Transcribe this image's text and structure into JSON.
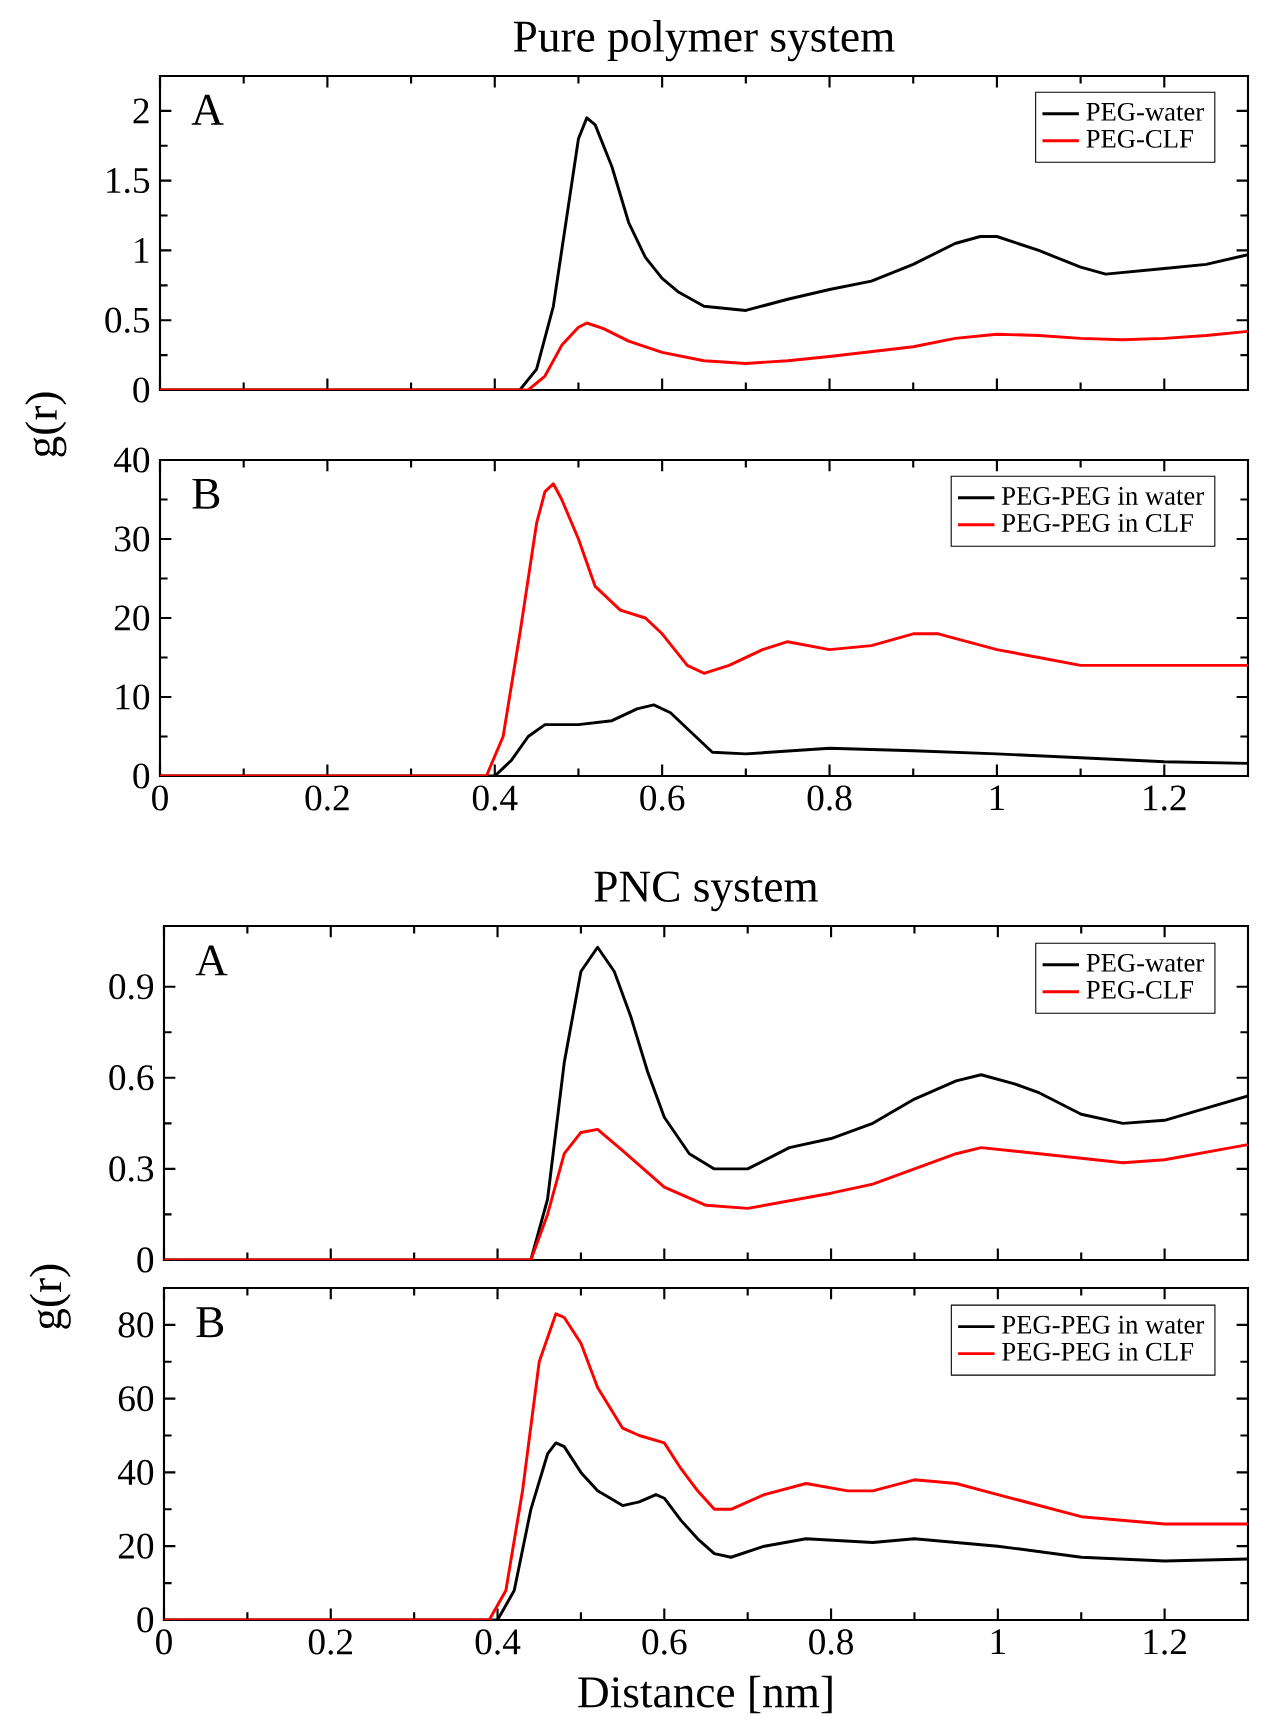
{
  "chart_data": [
    {
      "type": "line",
      "title": "Pure polymer system",
      "ylabel": "g(r)",
      "annotations": [
        "A"
      ],
      "xlim": [
        0,
        1.3
      ],
      "ylim": [
        0,
        2.25
      ],
      "xticks": [
        0,
        0.2,
        0.4,
        0.6,
        0.8,
        1,
        1.2
      ],
      "yticks": [
        0,
        0.5,
        1,
        1.5,
        2
      ],
      "tick_labels": "y",
      "legend": "top right",
      "series": [
        {
          "name": "PEG-water",
          "color": "#000000",
          "x": [
            0,
            0.43,
            0.45,
            0.47,
            0.49,
            0.5,
            0.51,
            0.52,
            0.54,
            0.56,
            0.58,
            0.6,
            0.62,
            0.65,
            0.7,
            0.75,
            0.8,
            0.85,
            0.9,
            0.95,
            0.98,
            1.0,
            1.05,
            1.1,
            1.13,
            1.2,
            1.25,
            1.3
          ],
          "values": [
            0,
            0,
            0.15,
            0.6,
            1.4,
            1.8,
            1.95,
            1.9,
            1.6,
            1.2,
            0.95,
            0.8,
            0.7,
            0.6,
            0.57,
            0.65,
            0.72,
            0.78,
            0.9,
            1.05,
            1.1,
            1.1,
            1.0,
            0.88,
            0.83,
            0.87,
            0.9,
            0.97
          ]
        },
        {
          "name": "PEG-CLF",
          "color": "#ff0000",
          "x": [
            0,
            0.44,
            0.46,
            0.48,
            0.5,
            0.51,
            0.53,
            0.56,
            0.6,
            0.65,
            0.7,
            0.75,
            0.8,
            0.9,
            0.95,
            1.0,
            1.05,
            1.1,
            1.15,
            1.2,
            1.25,
            1.3
          ],
          "values": [
            0,
            0,
            0.1,
            0.32,
            0.45,
            0.48,
            0.44,
            0.35,
            0.27,
            0.21,
            0.19,
            0.21,
            0.24,
            0.31,
            0.37,
            0.4,
            0.39,
            0.37,
            0.36,
            0.37,
            0.39,
            0.42
          ]
        }
      ]
    },
    {
      "type": "line",
      "annotations": [
        "B"
      ],
      "xlim": [
        0,
        1.3
      ],
      "ylim": [
        0,
        40
      ],
      "xticks": [
        0,
        0.2,
        0.4,
        0.6,
        0.8,
        1,
        1.2
      ],
      "yticks": [
        0,
        10,
        20,
        30,
        40
      ],
      "legend": "top right",
      "series": [
        {
          "name": "PEG-PEG in water",
          "color": "#000000",
          "x": [
            0,
            0.4,
            0.42,
            0.44,
            0.46,
            0.5,
            0.54,
            0.57,
            0.59,
            0.61,
            0.64,
            0.66,
            0.7,
            0.8,
            0.9,
            1.0,
            1.1,
            1.2,
            1.3
          ],
          "values": [
            0,
            0,
            2,
            5,
            6.5,
            6.5,
            7,
            8.5,
            9,
            8,
            5,
            3,
            2.8,
            3.5,
            3.2,
            2.8,
            2.3,
            1.8,
            1.6
          ]
        },
        {
          "name": "PEG-PEG in CLF",
          "color": "#ff0000",
          "x": [
            0,
            0.39,
            0.41,
            0.43,
            0.45,
            0.46,
            0.47,
            0.48,
            0.5,
            0.52,
            0.55,
            0.58,
            0.6,
            0.63,
            0.65,
            0.68,
            0.72,
            0.75,
            0.8,
            0.85,
            0.9,
            0.93,
            1.0,
            1.05,
            1.1,
            1.2,
            1.3
          ],
          "values": [
            0,
            0,
            5,
            18,
            32,
            36,
            37,
            35,
            30,
            24,
            21,
            20,
            18,
            14,
            13,
            14,
            16,
            17,
            16,
            16.5,
            18,
            18,
            16,
            15,
            14,
            14,
            14
          ]
        }
      ]
    },
    {
      "type": "line",
      "title": "PNC system",
      "ylabel": "g(r)",
      "annotations": [
        "A"
      ],
      "xlim": [
        0,
        1.3
      ],
      "ylim": [
        0,
        1.1
      ],
      "xticks": [
        0,
        0.2,
        0.4,
        0.6,
        0.8,
        1,
        1.2
      ],
      "yticks": [
        0,
        0.3,
        0.6,
        0.9
      ],
      "tick_labels": "y",
      "legend": "top right",
      "series": [
        {
          "name": "PEG-water",
          "color": "#000000",
          "x": [
            0,
            0.44,
            0.46,
            0.48,
            0.5,
            0.52,
            0.54,
            0.56,
            0.58,
            0.6,
            0.63,
            0.66,
            0.7,
            0.75,
            0.8,
            0.85,
            0.9,
            0.95,
            0.98,
            1.02,
            1.05,
            1.1,
            1.15,
            1.2,
            1.25,
            1.3
          ],
          "values": [
            0,
            0,
            0.2,
            0.65,
            0.95,
            1.03,
            0.95,
            0.8,
            0.62,
            0.47,
            0.35,
            0.3,
            0.3,
            0.37,
            0.4,
            0.45,
            0.53,
            0.59,
            0.61,
            0.58,
            0.55,
            0.48,
            0.45,
            0.46,
            0.5,
            0.54
          ]
        },
        {
          "name": "PEG-CLF",
          "color": "#ff0000",
          "x": [
            0,
            0.44,
            0.46,
            0.48,
            0.5,
            0.52,
            0.55,
            0.6,
            0.65,
            0.7,
            0.8,
            0.85,
            0.9,
            0.95,
            0.98,
            1.05,
            1.15,
            1.2,
            1.3
          ],
          "values": [
            0,
            0,
            0.15,
            0.35,
            0.42,
            0.43,
            0.36,
            0.24,
            0.18,
            0.17,
            0.22,
            0.25,
            0.3,
            0.35,
            0.37,
            0.35,
            0.32,
            0.33,
            0.38
          ]
        }
      ]
    },
    {
      "type": "line",
      "xlabel": "Distance [nm]",
      "annotations": [
        "B"
      ],
      "xlim": [
        0,
        1.3
      ],
      "ylim": [
        0,
        90
      ],
      "xticks": [
        0,
        0.2,
        0.4,
        0.6,
        0.8,
        1,
        1.2
      ],
      "yticks": [
        0,
        20,
        40,
        60,
        80
      ],
      "legend": "top right",
      "series": [
        {
          "name": "PEG-PEG in water",
          "color": "#000000",
          "x": [
            0,
            0.4,
            0.42,
            0.44,
            0.46,
            0.47,
            0.48,
            0.5,
            0.52,
            0.55,
            0.57,
            0.59,
            0.6,
            0.62,
            0.64,
            0.66,
            0.68,
            0.72,
            0.77,
            0.85,
            0.9,
            1.0,
            1.1,
            1.2,
            1.3
          ],
          "values": [
            0,
            0,
            8,
            30,
            45,
            48,
            47,
            40,
            35,
            31,
            32,
            34,
            33,
            27,
            22,
            18,
            17,
            20,
            22,
            21,
            22,
            20,
            17,
            16,
            16.5
          ]
        },
        {
          "name": "PEG-PEG in CLF",
          "color": "#ff0000",
          "x": [
            0,
            0.39,
            0.41,
            0.43,
            0.45,
            0.47,
            0.48,
            0.5,
            0.52,
            0.55,
            0.57,
            0.6,
            0.62,
            0.64,
            0.66,
            0.68,
            0.72,
            0.77,
            0.82,
            0.85,
            0.9,
            0.95,
            1.0,
            1.1,
            1.2,
            1.3
          ],
          "values": [
            0,
            0,
            8,
            35,
            70,
            83,
            82,
            75,
            63,
            52,
            50,
            48,
            41,
            35,
            30,
            30,
            34,
            37,
            35,
            35,
            38,
            37,
            34,
            28,
            26,
            26
          ]
        }
      ]
    }
  ]
}
